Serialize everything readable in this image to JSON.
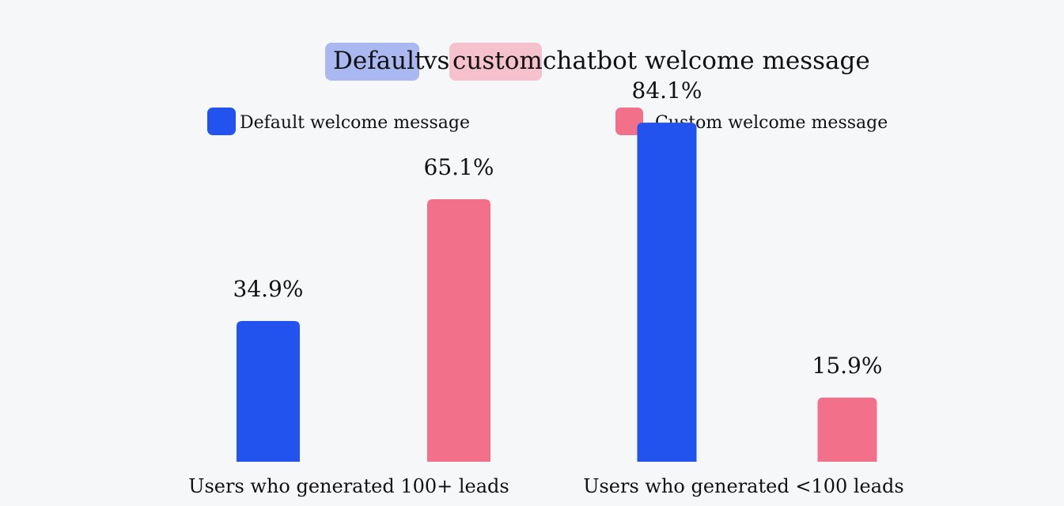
{
  "colors": {
    "background": "#f5f7f9",
    "default": "#2353ee",
    "custom": "#f2708a",
    "default_highlight": "#a9b8f0",
    "custom_highlight": "#f5c1cc"
  },
  "chart_data": {
    "type": "bar",
    "title": "Default vs custom chatbot welcome message",
    "title_parts": {
      "word1": "Default",
      "mid": "vs",
      "word2": "custom",
      "rest": "chatbot welcome message"
    },
    "categories": [
      "Users who generated 100+ leads",
      "Users who generated <100 leads"
    ],
    "series": [
      {
        "name": "Default welcome message",
        "values": [
          34.9,
          84.1
        ],
        "labels": [
          "34.9%",
          "84.1%"
        ]
      },
      {
        "name": "Custom welcome message",
        "values": [
          65.1,
          15.9
        ],
        "labels": [
          "65.1%",
          "15.9%"
        ]
      }
    ],
    "ylim": [
      0,
      100
    ],
    "grid": false,
    "legend": "top"
  }
}
